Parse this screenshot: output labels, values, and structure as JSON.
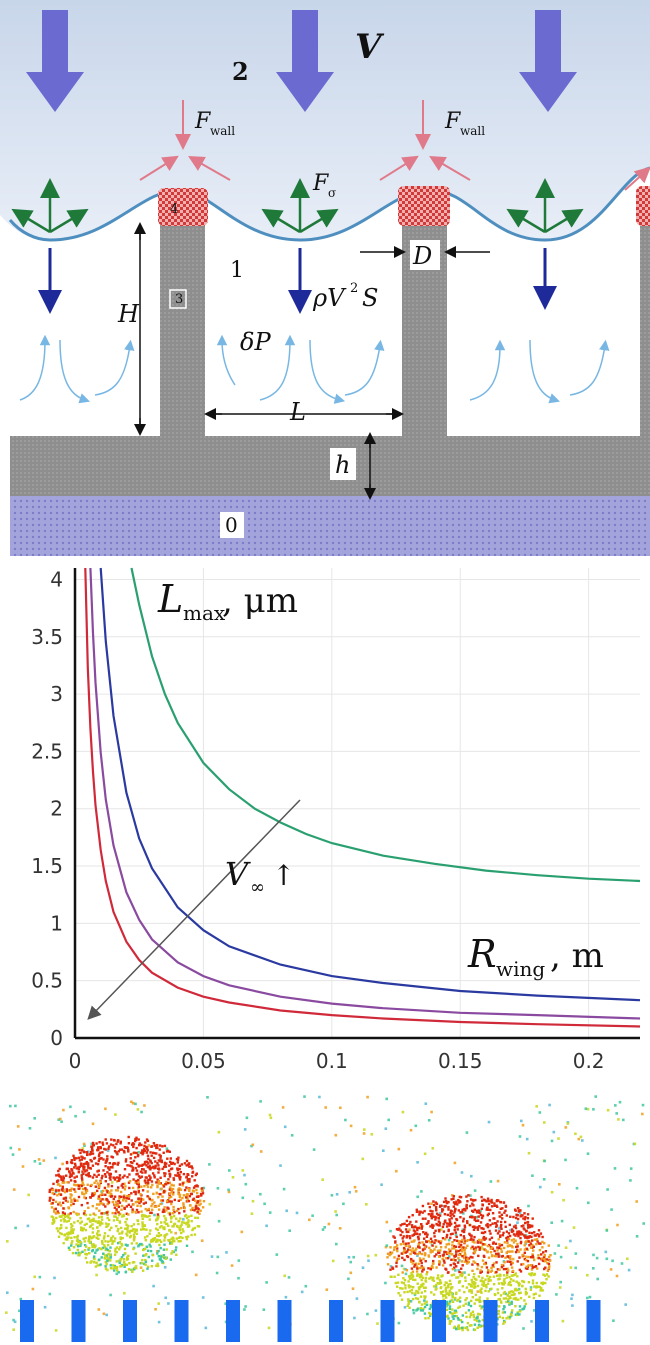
{
  "diagram": {
    "labels": {
      "region_0": "0",
      "region_1": "1",
      "region_2": "2",
      "velocity": "V",
      "height_H": "H",
      "base_h": "h",
      "gap_L": "L",
      "diameter_D": "D",
      "pressure": "δP",
      "momentum_base": "ρV",
      "momentum_exp": "2",
      "momentum_tail": "S",
      "surface_force": "F",
      "surface_force_sub": "σ",
      "wall_force": "F",
      "wall_force_sub": "wall",
      "post_label": "3",
      "cap_label": "4"
    },
    "colors": {
      "air": "#dce6f2",
      "meniscus": "#4f8fc0",
      "post": "#8c8c8c",
      "cap": "#d23a3a",
      "substrate": "#9a9ad6",
      "big_arrow": "#6a6ad0",
      "force_green": "#1f7a3a",
      "force_pink": "#e07a8a",
      "force_navy": "#1e2a9a",
      "flow": "#6ab0e0"
    }
  },
  "chart_data": {
    "type": "line",
    "ylabel_main": "L",
    "ylabel_sub": "max",
    "ylabel_unit": ", μm",
    "xlabel_main": "R",
    "xlabel_sub": "wing",
    "xlabel_unit": ",  m",
    "annotation_main": "V",
    "annotation_sub": "∞",
    "annotation_arrow": "↑",
    "xlim": [
      0,
      0.22
    ],
    "ylim": [
      0,
      4.1
    ],
    "x_ticks": [
      "0",
      "0.05",
      "0.1",
      "0.15",
      "0.2"
    ],
    "x_tick_values": [
      0,
      0.05,
      0.1,
      0.15,
      0.2
    ],
    "y_ticks": [
      "0",
      "0.5",
      "1",
      "1.5",
      "2",
      "2.5",
      "3",
      "3.5",
      "4"
    ],
    "y_tick_values": [
      0,
      0.5,
      1,
      1.5,
      2,
      2.5,
      3,
      3.5,
      4
    ],
    "grid": true,
    "series": [
      {
        "color": "#2aa070",
        "x": [
          0.022,
          0.025,
          0.03,
          0.035,
          0.04,
          0.05,
          0.06,
          0.07,
          0.08,
          0.09,
          0.1,
          0.12,
          0.14,
          0.16,
          0.18,
          0.2,
          0.22
        ],
        "y": [
          4.1,
          3.78,
          3.33,
          3.0,
          2.75,
          2.4,
          2.17,
          2.0,
          1.88,
          1.78,
          1.7,
          1.59,
          1.52,
          1.46,
          1.42,
          1.39,
          1.37
        ]
      },
      {
        "color": "#2a3aa0",
        "x": [
          0.01,
          0.012,
          0.015,
          0.02,
          0.025,
          0.03,
          0.04,
          0.05,
          0.06,
          0.08,
          0.1,
          0.12,
          0.15,
          0.18,
          0.22
        ],
        "y": [
          4.1,
          3.46,
          2.81,
          2.14,
          1.74,
          1.48,
          1.14,
          0.94,
          0.8,
          0.64,
          0.54,
          0.48,
          0.41,
          0.37,
          0.33
        ]
      },
      {
        "color": "#8a4aa0",
        "x": [
          0.006,
          0.007,
          0.008,
          0.01,
          0.012,
          0.015,
          0.02,
          0.025,
          0.03,
          0.04,
          0.05,
          0.06,
          0.08,
          0.1,
          0.12,
          0.15,
          0.18,
          0.22
        ],
        "y": [
          4.1,
          3.53,
          3.1,
          2.49,
          2.08,
          1.68,
          1.27,
          1.03,
          0.86,
          0.66,
          0.54,
          0.46,
          0.36,
          0.3,
          0.26,
          0.22,
          0.2,
          0.17
        ]
      },
      {
        "color": "#d02a3a",
        "x": [
          0.004,
          0.005,
          0.006,
          0.007,
          0.008,
          0.01,
          0.012,
          0.015,
          0.02,
          0.025,
          0.03,
          0.04,
          0.05,
          0.06,
          0.08,
          0.1,
          0.12,
          0.15,
          0.18,
          0.22
        ],
        "y": [
          4.1,
          3.23,
          2.7,
          2.32,
          2.03,
          1.64,
          1.37,
          1.1,
          0.84,
          0.68,
          0.57,
          0.44,
          0.36,
          0.31,
          0.24,
          0.2,
          0.17,
          0.14,
          0.12,
          0.1
        ]
      }
    ]
  },
  "simulation": {
    "colors": {
      "pillar": "#1a6af0",
      "hot": "#e02a10",
      "warm": "#f0a020",
      "mid": "#c8d820",
      "cool": "#40c8a0"
    },
    "pillar_count": 12
  }
}
